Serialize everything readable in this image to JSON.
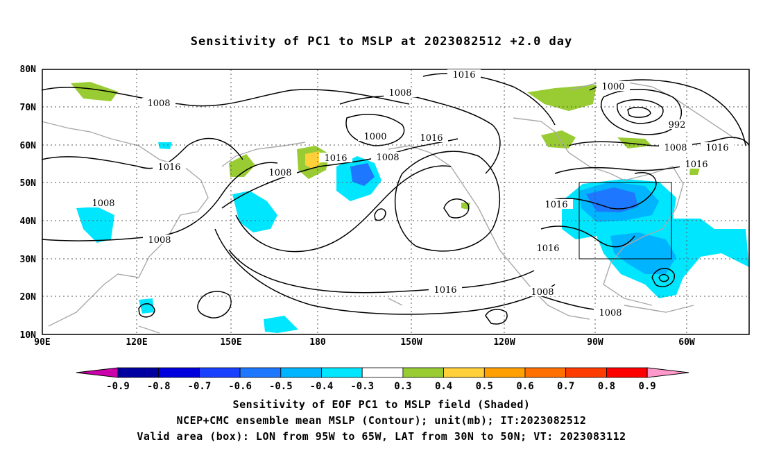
{
  "title": "Sensitivity of PC1 to MSLP at 2023082512 +2.0 day",
  "lat_labels": [
    "80N",
    "70N",
    "60N",
    "50N",
    "40N",
    "30N",
    "20N",
    "10N"
  ],
  "lon_labels": [
    "90E",
    "120E",
    "150E",
    "180",
    "150W",
    "120W",
    "90W",
    "60W"
  ],
  "contour_labels": [
    "1016",
    "1008",
    "1000",
    "1016",
    "1008",
    "1016",
    "1008",
    "1000",
    "1008",
    "1016",
    "992",
    "1008",
    "1016",
    "1016",
    "1016",
    "1008",
    "1008",
    "1008",
    "1016",
    "1016",
    "1008"
  ],
  "colorbar": {
    "labels": [
      "-0.9",
      "-0.8",
      "-0.7",
      "-0.6",
      "-0.5",
      "-0.4",
      "-0.3",
      "0.3",
      "0.4",
      "0.5",
      "0.6",
      "0.7",
      "0.8",
      "0.9"
    ],
    "colors": [
      "#cc00aa",
      "#0000a0",
      "#0000dd",
      "#1a40ff",
      "#1e78ff",
      "#00b4ff",
      "#00e6ff",
      "#ffffff",
      "#99cc33",
      "#ffd03a",
      "#ffa000",
      "#ff7000",
      "#ff3c00",
      "#ff0000",
      "#ff99cc"
    ]
  },
  "captions": {
    "line1": "Sensitivity of EOF PC1 to MSLP field (Shaded)",
    "line2": "NCEP+CMC ensemble mean MSLP (Contour); unit(mb); IT:2023082512",
    "line3": "Valid area (box): LON from 95W to 65W, LAT from 30N to 50N; VT: 2023083112"
  }
}
